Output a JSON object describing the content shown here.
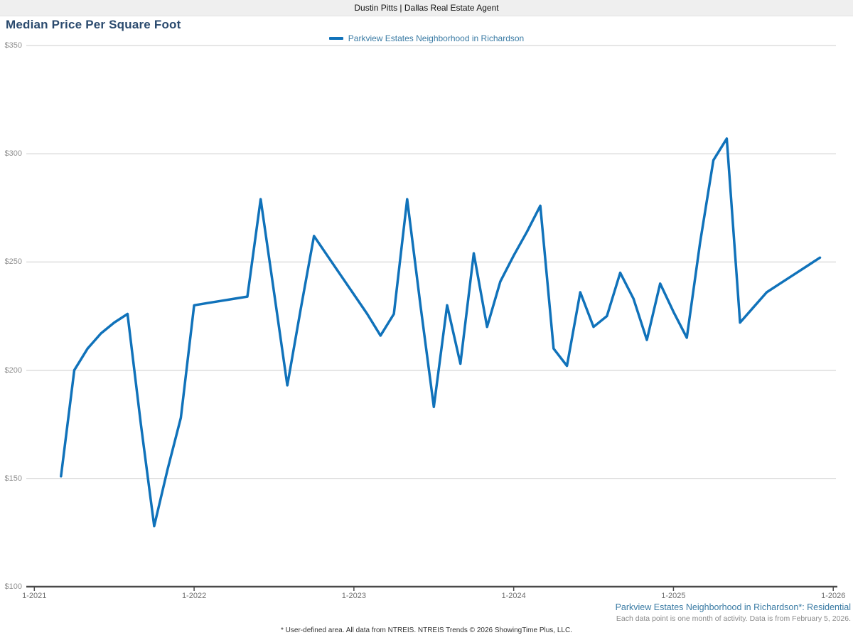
{
  "header": {
    "agent_banner": "Dustin Pitts | Dallas Real Estate Agent"
  },
  "chart": {
    "title": "Median Price Per Square Foot",
    "legend_label": "Parkview Estates Neighborhood in Richardson"
  },
  "footer": {
    "series_note": "Parkview Estates Neighborhood in Richardson*: Residential",
    "period_note": "Each data point is one month of activity. Data is from February 5, 2026.",
    "disclaimer": "* User-defined area. All data from NTREIS. NTREIS Trends © 2026 ShowingTime Plus, LLC."
  },
  "colors": {
    "line": "#1072ba",
    "legend_text": "#3a7ba4",
    "series_note_text": "#3a7ba4",
    "title_text": "#2a4a6e",
    "gridline": "#cccccc",
    "axis": "#4a4a4a",
    "topbar_bg": "#efefef"
  },
  "chart_data": {
    "type": "line",
    "title": "Median Price Per Square Foot",
    "ylabel": "",
    "xlabel": "",
    "ylim": [
      100,
      350
    ],
    "grid": "horizontal",
    "legend_position": "top-center",
    "y_ticks": [
      {
        "label": "$350",
        "value": 350
      },
      {
        "label": "$300",
        "value": 300
      },
      {
        "label": "$250",
        "value": 250
      },
      {
        "label": "$200",
        "value": 200
      },
      {
        "label": "$150",
        "value": 150
      },
      {
        "label": "$100",
        "value": 100
      }
    ],
    "x_ticks": [
      "1-2021",
      "1-2022",
      "1-2023",
      "1-2024",
      "1-2025",
      "1-2026"
    ],
    "series": [
      {
        "name": "Parkview Estates Neighborhood in Richardson",
        "points": [
          [
            "3-2021",
            151
          ],
          [
            "4-2021",
            200
          ],
          [
            "5-2021",
            210
          ],
          [
            "6-2021",
            217
          ],
          [
            "7-2021",
            222
          ],
          [
            "8-2021",
            226
          ],
          [
            "9-2021",
            175
          ],
          [
            "10-2021",
            128
          ],
          [
            "11-2021",
            154
          ],
          [
            "12-2021",
            178
          ],
          [
            "1-2022",
            230
          ],
          [
            "2-2022",
            231
          ],
          [
            "3-2022",
            232
          ],
          [
            "4-2022",
            233
          ],
          [
            "5-2022",
            234
          ],
          [
            "6-2022",
            279
          ],
          [
            "7-2022",
            236
          ],
          [
            "8-2022",
            193
          ],
          [
            "9-2022",
            228
          ],
          [
            "10-2022",
            262
          ],
          [
            "11-2022",
            253
          ],
          [
            "12-2022",
            244
          ],
          [
            "1-2023",
            235
          ],
          [
            "2-2023",
            226
          ],
          [
            "3-2023",
            216
          ],
          [
            "4-2023",
            226
          ],
          [
            "5-2023",
            279
          ],
          [
            "6-2023",
            230
          ],
          [
            "7-2023",
            183
          ],
          [
            "8-2023",
            230
          ],
          [
            "9-2023",
            203
          ],
          [
            "10-2023",
            254
          ],
          [
            "11-2023",
            220
          ],
          [
            "12-2023",
            241
          ],
          [
            "1-2024",
            253
          ],
          [
            "2-2024",
            264
          ],
          [
            "3-2024",
            276
          ],
          [
            "4-2024",
            210
          ],
          [
            "5-2024",
            202
          ],
          [
            "6-2024",
            236
          ],
          [
            "7-2024",
            220
          ],
          [
            "8-2024",
            225
          ],
          [
            "9-2024",
            245
          ],
          [
            "10-2024",
            233
          ],
          [
            "11-2024",
            214
          ],
          [
            "12-2024",
            240
          ],
          [
            "1-2025",
            227
          ],
          [
            "2-2025",
            215
          ],
          [
            "3-2025",
            259
          ],
          [
            "4-2025",
            297
          ],
          [
            "5-2025",
            307
          ],
          [
            "6-2025",
            222
          ],
          [
            "7-2025",
            229
          ],
          [
            "8-2025",
            236
          ],
          [
            "9-2025",
            240
          ],
          [
            "10-2025",
            244
          ],
          [
            "11-2025",
            248
          ],
          [
            "12-2025",
            252
          ]
        ]
      }
    ]
  }
}
